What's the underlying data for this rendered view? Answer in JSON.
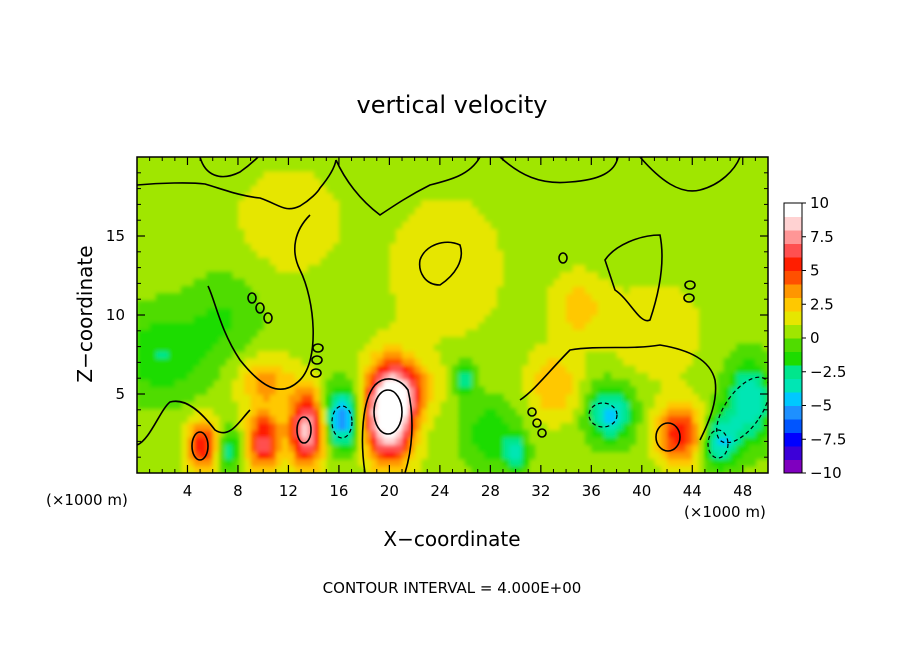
{
  "chart_data": {
    "type": "heatmap",
    "title": "vertical velocity",
    "xlabel": "X−coordinate",
    "ylabel": "Z−coordinate",
    "x_unit_left": "(×1000 m)",
    "x_unit_right": "(×1000 m)",
    "footer": "CONTOUR INTERVAL = 4.000E+00",
    "xlim": [
      0,
      50
    ],
    "ylim": [
      0,
      20
    ],
    "x_ticks": [
      4,
      8,
      12,
      16,
      20,
      24,
      28,
      32,
      36,
      40,
      44,
      48
    ],
    "y_ticks": [
      5,
      10,
      15
    ],
    "colorbar": {
      "min": -10,
      "max": 10,
      "tick_values": [
        10,
        7.5,
        5,
        2.5,
        0,
        -2.5,
        -5,
        -7.5,
        -10
      ],
      "tick_labels": [
        "10",
        "7.5",
        "5",
        "2.5",
        "0",
        "−2.5",
        "−5",
        "−7.5",
        "−10"
      ],
      "colors": [
        "#7f00bf",
        "#3c00d8",
        "#0000ff",
        "#0055ff",
        "#1e90ff",
        "#00c8ff",
        "#00e6b4",
        "#00e68c",
        "#1edc00",
        "#50dc00",
        "#a0e600",
        "#e6e600",
        "#ffc800",
        "#ff9600",
        "#ff5000",
        "#ff1e00",
        "#ff5050",
        "#ff9696",
        "#ffd2d2",
        "#ffffff"
      ]
    },
    "background_value": 0.5,
    "features": [
      {
        "x": 5.2,
        "z": 1.8,
        "value": 5.5,
        "sx": 0.9,
        "sz": 1.1
      },
      {
        "x": 7.2,
        "z": 1.5,
        "value": -3.5,
        "sx": 0.6,
        "sz": 0.9
      },
      {
        "x": 10.0,
        "z": 2.0,
        "value": 6.0,
        "sx": 0.9,
        "sz": 1.3
      },
      {
        "x": 10.2,
        "z": 5.8,
        "value": 2.8,
        "sx": 1.6,
        "sz": 1.2
      },
      {
        "x": 13.5,
        "z": 2.8,
        "value": 8.0,
        "sx": 1.0,
        "sz": 1.6
      },
      {
        "x": 16.2,
        "z": 3.5,
        "value": -6.5,
        "sx": 1.0,
        "sz": 1.3
      },
      {
        "x": 20.0,
        "z": 3.8,
        "value": 12.0,
        "sx": 1.3,
        "sz": 2.0
      },
      {
        "x": 21.5,
        "z": 5.5,
        "value": 3.0,
        "sx": 1.5,
        "sz": 1.2
      },
      {
        "x": 26.0,
        "z": 6.0,
        "value": -3.0,
        "sx": 0.6,
        "sz": 0.8
      },
      {
        "x": 28.0,
        "z": 2.5,
        "value": -2.5,
        "sx": 1.5,
        "sz": 1.5
      },
      {
        "x": 30.0,
        "z": 1.2,
        "value": -3.5,
        "sx": 0.6,
        "sz": 0.8
      },
      {
        "x": 33.0,
        "z": 5.5,
        "value": 2.5,
        "sx": 1.4,
        "sz": 1.5
      },
      {
        "x": 37.5,
        "z": 3.8,
        "value": -5.0,
        "sx": 1.2,
        "sz": 1.2
      },
      {
        "x": 35.0,
        "z": 10.5,
        "value": 2.0,
        "sx": 1.5,
        "sz": 1.5
      },
      {
        "x": 43.0,
        "z": 2.5,
        "value": 5.5,
        "sx": 1.3,
        "sz": 1.3
      },
      {
        "x": 46.2,
        "z": 2.0,
        "value": -4.5,
        "sx": 1.0,
        "sz": 1.2
      },
      {
        "x": 48.5,
        "z": 4.5,
        "value": -4.5,
        "sx": 1.3,
        "sz": 1.8
      },
      {
        "x": 2.0,
        "z": 7.5,
        "value": -2.5,
        "sx": 2.5,
        "sz": 2.0
      },
      {
        "x": 24.5,
        "z": 13.0,
        "value": 1.5,
        "sx": 3.0,
        "sz": 3.0
      },
      {
        "x": 41.0,
        "z": 9.0,
        "value": 1.5,
        "sx": 2.5,
        "sz": 2.0
      },
      {
        "x": 12.0,
        "z": 16.0,
        "value": 1.2,
        "sx": 3.0,
        "sz": 2.5
      },
      {
        "x": 7.0,
        "z": 10.0,
        "value": -1.5,
        "sx": 2.0,
        "sz": 2.0
      }
    ]
  }
}
